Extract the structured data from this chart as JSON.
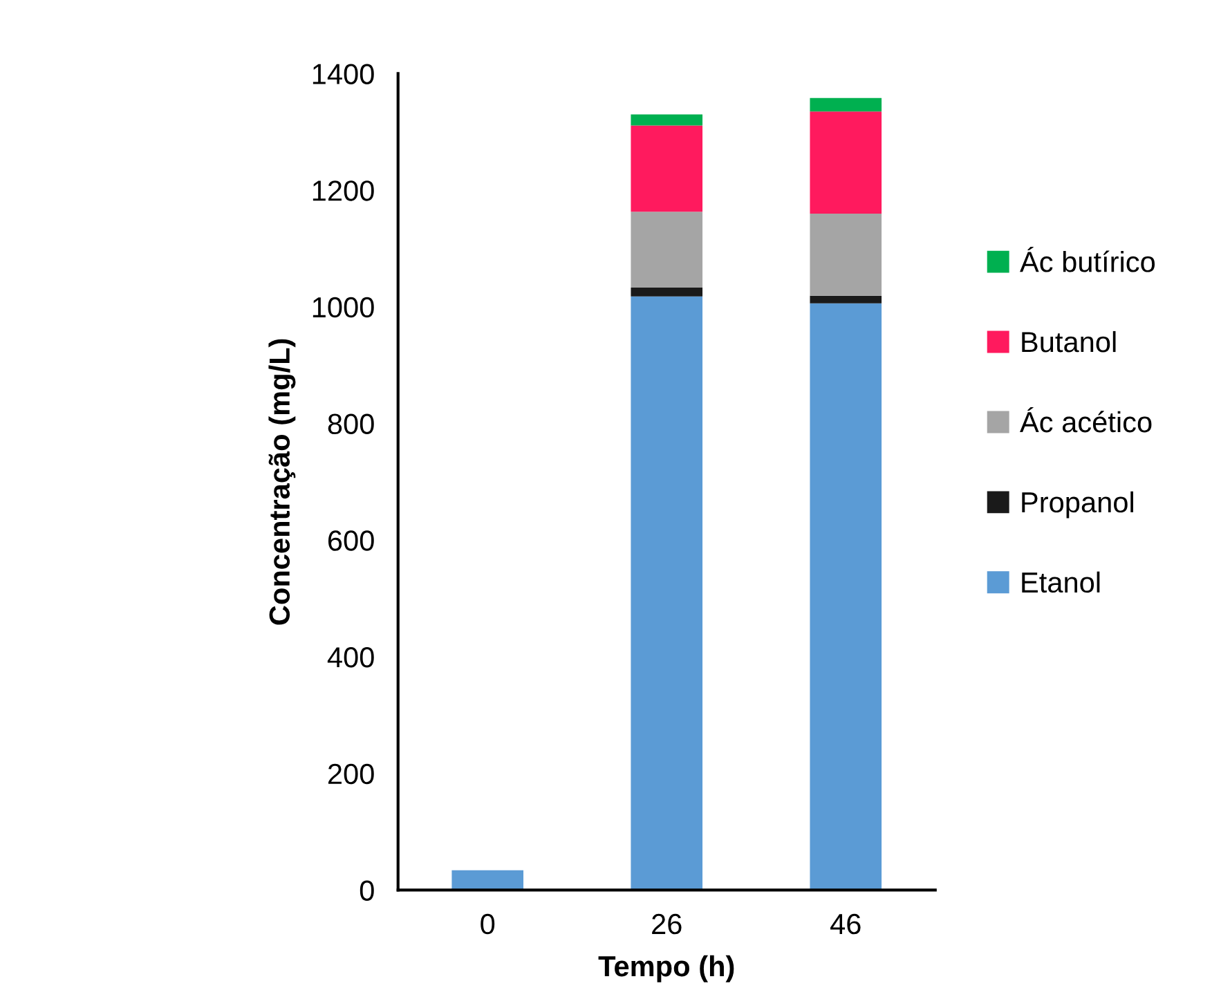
{
  "chart_data": {
    "type": "bar",
    "stacked": true,
    "xlabel": "Tempo (h)",
    "ylabel": "Concentração (mg/L)",
    "categories": [
      "0",
      "26",
      "46"
    ],
    "series": [
      {
        "name": "Etanol",
        "color": "#5b9bd5",
        "values": [
          34,
          1018,
          1006
        ]
      },
      {
        "name": "Propanol",
        "color": "#1a1a1a",
        "values": [
          0,
          15,
          13
        ]
      },
      {
        "name": "Ác acético",
        "color": "#a5a5a5",
        "values": [
          0,
          130,
          141
        ]
      },
      {
        "name": "Butanol",
        "color": "#ff1a5e",
        "values": [
          0,
          148,
          175
        ]
      },
      {
        "name": "Ác butírico",
        "color": "#00b050",
        "values": [
          0,
          19,
          23
        ]
      }
    ],
    "ylim": [
      0,
      1400
    ],
    "yticks": [
      0,
      200,
      400,
      600,
      800,
      1000,
      1200,
      1400
    ],
    "grid": false,
    "legend": "right"
  }
}
